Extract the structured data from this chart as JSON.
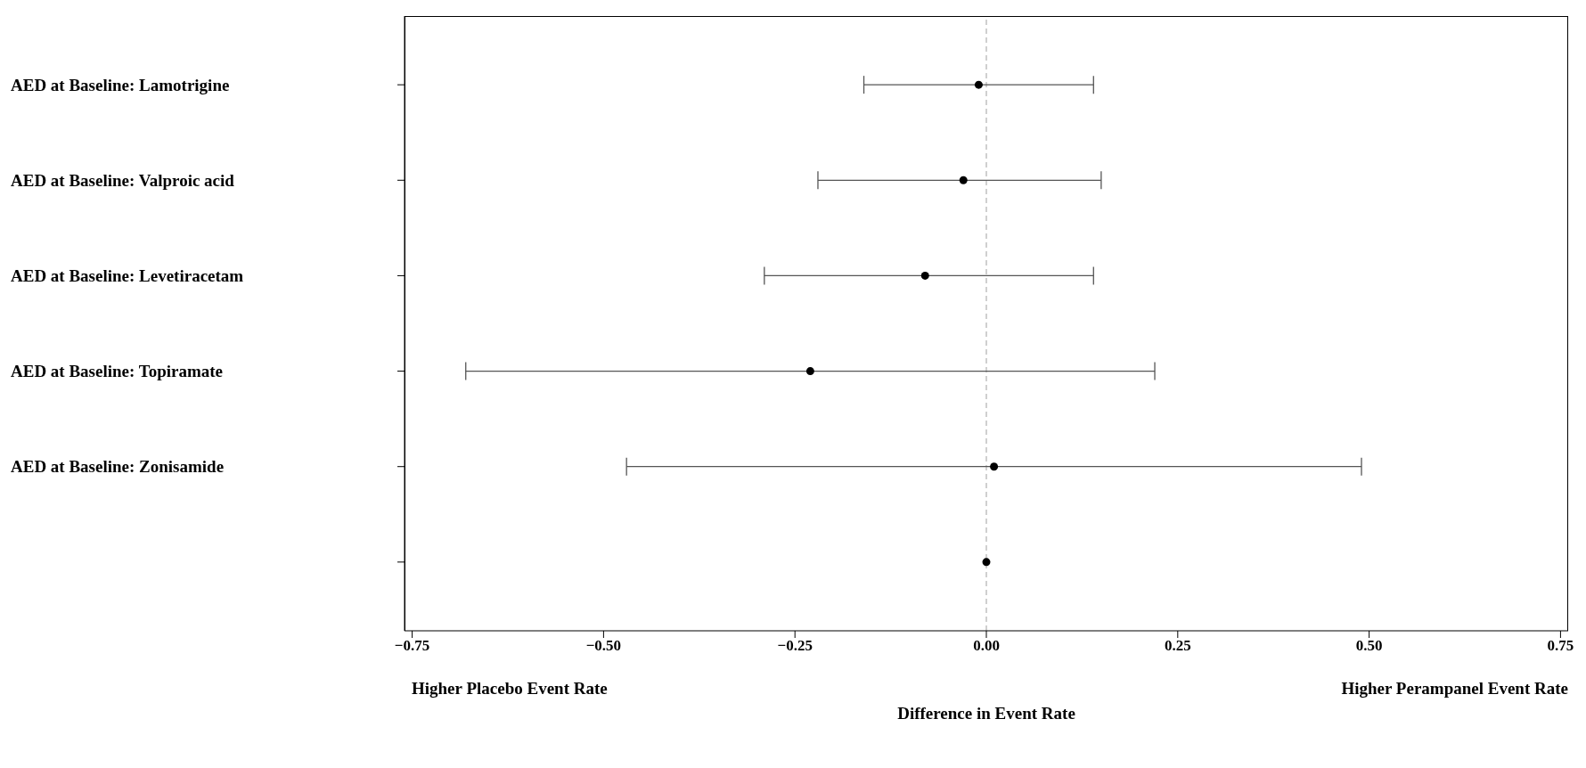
{
  "chart_data": {
    "type": "scatter",
    "orientation": "horizontal",
    "xlabel": "Difference in Event Rate",
    "categories": [
      "AED at Baseline: Lamotrigine",
      "AED at Baseline: Valproic acid",
      "AED at Baseline: Levetiracetam",
      "AED at Baseline: Topiramate",
      "AED at Baseline: Zonisamide",
      null
    ],
    "values": [
      -0.01,
      -0.03,
      -0.08,
      -0.23,
      0.01,
      0.0
    ],
    "errors": [
      [
        -0.16,
        0.14
      ],
      [
        -0.22,
        0.15
      ],
      [
        -0.29,
        0.14
      ],
      [
        -0.68,
        0.22
      ],
      [
        -0.47,
        0.49
      ],
      null
    ],
    "color": "#000000",
    "marker": "circle",
    "grid": false,
    "xlim": [
      -0.76,
      0.76
    ],
    "xticks": [
      {
        "value": -0.75,
        "label": "−0.75"
      },
      {
        "value": -0.5,
        "label": "−0.50"
      },
      {
        "value": -0.25,
        "label": "−0.25"
      },
      {
        "value": 0,
        "label": "0.00"
      },
      {
        "value": 0.25,
        "label": "0.25"
      },
      {
        "value": 0.5,
        "label": "0.50"
      },
      {
        "value": 0.75,
        "label": "0.75"
      }
    ],
    "ref_lines": [
      {
        "axis": "x",
        "value": 0,
        "color": "#a0a0a0",
        "line_style": "dashed"
      }
    ],
    "annotations": [
      "Higher Placebo Event Rate",
      "Higher Perampanel Event Rate"
    ]
  }
}
